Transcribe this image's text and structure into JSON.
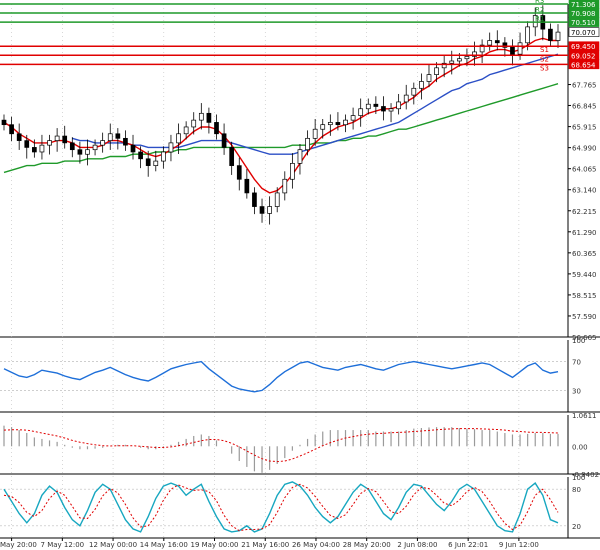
{
  "colors": {
    "bull": "#000000",
    "bear": "#000000",
    "ma_fast": "#e00000",
    "ma_mid": "#2b4fc6",
    "ma_slow": "#1f9a2a",
    "support": "#e00000",
    "resistance": "#1f9a2a",
    "rsi": "#1e6fd9",
    "macd_hist": "#9a9a9a",
    "macd_signal": "#e00000",
    "stoch_k": "#17a7c0",
    "stoch_d": "#e00000",
    "grid": "#bdbdbd",
    "axis_text": "#333333"
  },
  "chart_data": [
    {
      "type": "candlestick",
      "name": "price",
      "ylim": [
        56.665,
        71.306
      ],
      "yticks": [
        "67.765",
        "66.845",
        "65.915",
        "64.990",
        "64.065",
        "63.140",
        "62.215",
        "61.290",
        "60.365",
        "59.440",
        "58.515",
        "57.590",
        "56.665"
      ],
      "xticks": [
        "May 20:00",
        "7 May 12:00",
        "12 May 00:00",
        "14 May 16:00",
        "19 May 00:00",
        "21 May 16:00",
        "26 May 04:00",
        "28 May 20:00",
        "2 Jun 08:00",
        "6 Jun 22:01",
        "9 Jun 12:00"
      ],
      "levels": [
        {
          "name": "R3",
          "value": 71.306,
          "kind": "resistance"
        },
        {
          "name": "R2",
          "value": 70.908,
          "kind": "resistance"
        },
        {
          "name": "R1",
          "value": 70.51,
          "kind": "resistance"
        },
        {
          "name": "",
          "value": 70.07,
          "kind": "last"
        },
        {
          "name": "S1",
          "value": 69.45,
          "kind": "support"
        },
        {
          "name": "S2",
          "value": 69.052,
          "kind": "support"
        },
        {
          "name": "S3",
          "value": 68.654,
          "kind": "support"
        }
      ],
      "closes": [
        66.0,
        65.6,
        65.3,
        65.0,
        64.8,
        65.1,
        65.3,
        65.5,
        65.2,
        64.9,
        64.7,
        64.9,
        65.1,
        65.3,
        65.6,
        65.4,
        65.1,
        64.8,
        64.5,
        64.2,
        64.4,
        64.8,
        65.2,
        65.6,
        65.9,
        66.2,
        66.5,
        66.1,
        65.6,
        65.0,
        64.2,
        63.6,
        63.0,
        62.4,
        62.1,
        62.4,
        63.0,
        63.6,
        64.3,
        64.9,
        65.4,
        65.8,
        66.0,
        66.1,
        66.0,
        66.2,
        66.4,
        66.7,
        66.9,
        66.8,
        66.6,
        66.7,
        67.0,
        67.3,
        67.6,
        67.9,
        68.2,
        68.5,
        68.7,
        68.8,
        68.9,
        69.0,
        69.2,
        69.5,
        69.7,
        69.6,
        69.4,
        69.1,
        69.6,
        70.3,
        70.8,
        70.2,
        69.7,
        70.07
      ],
      "ma_fast": [
        66.1,
        65.9,
        65.6,
        65.4,
        65.2,
        65.2,
        65.2,
        65.3,
        65.3,
        65.2,
        65.0,
        65.0,
        65.0,
        65.1,
        65.3,
        65.3,
        65.2,
        65.1,
        64.9,
        64.7,
        64.6,
        64.7,
        64.9,
        65.1,
        65.4,
        65.7,
        65.9,
        65.9,
        65.8,
        65.5,
        65.1,
        64.6,
        64.1,
        63.6,
        63.2,
        63.0,
        63.1,
        63.4,
        63.8,
        64.3,
        64.8,
        65.2,
        65.5,
        65.7,
        65.9,
        66.0,
        66.1,
        66.3,
        66.5,
        66.6,
        66.7,
        66.7,
        66.8,
        67.0,
        67.2,
        67.5,
        67.7,
        68.0,
        68.2,
        68.4,
        68.6,
        68.7,
        68.9,
        69.0,
        69.2,
        69.3,
        69.3,
        69.2,
        69.3,
        69.5,
        69.7,
        69.8,
        69.7,
        69.7
      ],
      "ma_mid": [
        null,
        null,
        null,
        null,
        null,
        null,
        null,
        null,
        null,
        65.4,
        65.3,
        65.3,
        65.2,
        65.2,
        65.2,
        65.2,
        65.2,
        65.1,
        65.1,
        65.0,
        65.0,
        65.0,
        65.0,
        65.0,
        65.1,
        65.2,
        65.3,
        65.3,
        65.3,
        65.3,
        65.2,
        65.1,
        65.0,
        64.9,
        64.8,
        64.7,
        64.7,
        64.7,
        64.7,
        64.8,
        64.9,
        65.0,
        65.1,
        65.2,
        65.3,
        65.4,
        65.5,
        65.6,
        65.7,
        65.8,
        65.9,
        66.0,
        66.1,
        66.3,
        66.5,
        66.7,
        66.9,
        67.1,
        67.3,
        67.5,
        67.6,
        67.8,
        67.9,
        68.0,
        68.2,
        68.3,
        68.4,
        68.5,
        68.6,
        68.7,
        68.8,
        68.9,
        69.0,
        69.1
      ],
      "ma_slow": [
        63.9,
        64.0,
        64.1,
        64.2,
        64.2,
        64.3,
        64.3,
        64.3,
        64.4,
        64.4,
        64.4,
        64.5,
        64.5,
        64.5,
        64.6,
        64.6,
        64.6,
        64.7,
        64.7,
        64.7,
        64.8,
        64.8,
        64.8,
        64.9,
        64.9,
        65.0,
        65.0,
        65.0,
        65.0,
        65.0,
        65.0,
        65.0,
        65.0,
        65.0,
        65.0,
        65.0,
        65.0,
        65.0,
        65.1,
        65.1,
        65.1,
        65.2,
        65.2,
        65.2,
        65.3,
        65.3,
        65.4,
        65.4,
        65.5,
        65.5,
        65.6,
        65.7,
        65.8,
        65.8,
        65.9,
        66.0,
        66.1,
        66.2,
        66.3,
        66.4,
        66.5,
        66.6,
        66.7,
        66.8,
        66.9,
        67.0,
        67.1,
        67.2,
        67.3,
        67.4,
        67.5,
        67.6,
        67.7,
        67.8
      ]
    },
    {
      "type": "line",
      "name": "rsi",
      "ylim": [
        0,
        100
      ],
      "yticks": [
        "100",
        "70",
        "30",
        "0"
      ],
      "values": [
        60,
        55,
        50,
        48,
        52,
        58,
        56,
        54,
        50,
        47,
        45,
        50,
        55,
        58,
        62,
        57,
        52,
        48,
        45,
        43,
        48,
        54,
        60,
        63,
        66,
        68,
        70,
        60,
        52,
        44,
        36,
        32,
        30,
        28,
        30,
        38,
        48,
        56,
        62,
        68,
        70,
        66,
        62,
        60,
        58,
        62,
        64,
        66,
        63,
        60,
        58,
        62,
        66,
        68,
        70,
        68,
        66,
        64,
        62,
        60,
        62,
        64,
        66,
        68,
        66,
        60,
        54,
        48,
        56,
        64,
        68,
        58,
        54,
        56
      ]
    },
    {
      "type": "bar",
      "name": "macd",
      "ylim": [
        -0.9402,
        1.0611
      ],
      "yticks": [
        "1.0611",
        "0.00",
        "-0.9402"
      ],
      "values": [
        0.7,
        0.65,
        0.55,
        0.45,
        0.3,
        0.25,
        0.2,
        0.15,
        0.05,
        -0.05,
        -0.1,
        -0.1,
        -0.08,
        -0.05,
        0.0,
        0.05,
        0.05,
        0.0,
        -0.05,
        -0.1,
        -0.1,
        -0.05,
        0.05,
        0.15,
        0.25,
        0.35,
        0.4,
        0.35,
        0.2,
        0.0,
        -0.25,
        -0.5,
        -0.7,
        -0.85,
        -0.9,
        -0.8,
        -0.6,
        -0.4,
        -0.15,
        0.05,
        0.25,
        0.4,
        0.5,
        0.55,
        0.55,
        0.55,
        0.55,
        0.55,
        0.55,
        0.5,
        0.5,
        0.5,
        0.5,
        0.55,
        0.6,
        0.62,
        0.64,
        0.65,
        0.65,
        0.65,
        0.62,
        0.6,
        0.58,
        0.55,
        0.55,
        0.5,
        0.45,
        0.4,
        0.4,
        0.42,
        0.45,
        0.45,
        0.42,
        0.42
      ],
      "signal": [
        0.55,
        0.56,
        0.56,
        0.55,
        0.5,
        0.45,
        0.4,
        0.35,
        0.28,
        0.2,
        0.14,
        0.09,
        0.05,
        0.02,
        0.01,
        0.02,
        0.02,
        0.02,
        0.0,
        -0.02,
        -0.04,
        -0.04,
        -0.02,
        0.02,
        0.07,
        0.13,
        0.19,
        0.23,
        0.23,
        0.19,
        0.1,
        -0.02,
        -0.16,
        -0.3,
        -0.42,
        -0.5,
        -0.52,
        -0.5,
        -0.43,
        -0.33,
        -0.22,
        -0.1,
        0.02,
        0.12,
        0.21,
        0.28,
        0.33,
        0.38,
        0.41,
        0.43,
        0.44,
        0.46,
        0.47,
        0.48,
        0.5,
        0.52,
        0.54,
        0.56,
        0.58,
        0.59,
        0.6,
        0.6,
        0.6,
        0.59,
        0.58,
        0.57,
        0.55,
        0.52,
        0.5,
        0.48,
        0.47,
        0.47,
        0.46,
        0.45
      ]
    },
    {
      "type": "line",
      "name": "stochastic",
      "ylim": [
        0,
        100
      ],
      "yticks": [
        "100",
        "80",
        "20",
        "0"
      ],
      "k": [
        80,
        60,
        40,
        25,
        40,
        70,
        85,
        75,
        50,
        30,
        20,
        45,
        75,
        88,
        80,
        55,
        30,
        15,
        10,
        35,
        65,
        85,
        90,
        85,
        70,
        80,
        88,
        60,
        35,
        15,
        10,
        12,
        20,
        10,
        15,
        40,
        70,
        88,
        92,
        85,
        70,
        50,
        35,
        25,
        35,
        55,
        75,
        88,
        80,
        60,
        40,
        30,
        50,
        75,
        88,
        85,
        70,
        55,
        45,
        60,
        80,
        88,
        80,
        60,
        40,
        20,
        12,
        10,
        40,
        80,
        90,
        70,
        30,
        25
      ],
      "d": [
        70,
        68,
        58,
        42,
        35,
        45,
        65,
        77,
        70,
        52,
        33,
        32,
        47,
        69,
        81,
        74,
        55,
        33,
        18,
        20,
        37,
        62,
        80,
        87,
        82,
        78,
        79,
        76,
        61,
        37,
        20,
        12,
        14,
        14,
        15,
        22,
        42,
        66,
        83,
        88,
        82,
        68,
        52,
        37,
        32,
        38,
        55,
        73,
        81,
        76,
        60,
        43,
        40,
        52,
        71,
        83,
        81,
        70,
        57,
        53,
        62,
        76,
        83,
        76,
        60,
        40,
        24,
        14,
        21,
        43,
        70,
        80,
        63,
        42
      ]
    }
  ]
}
